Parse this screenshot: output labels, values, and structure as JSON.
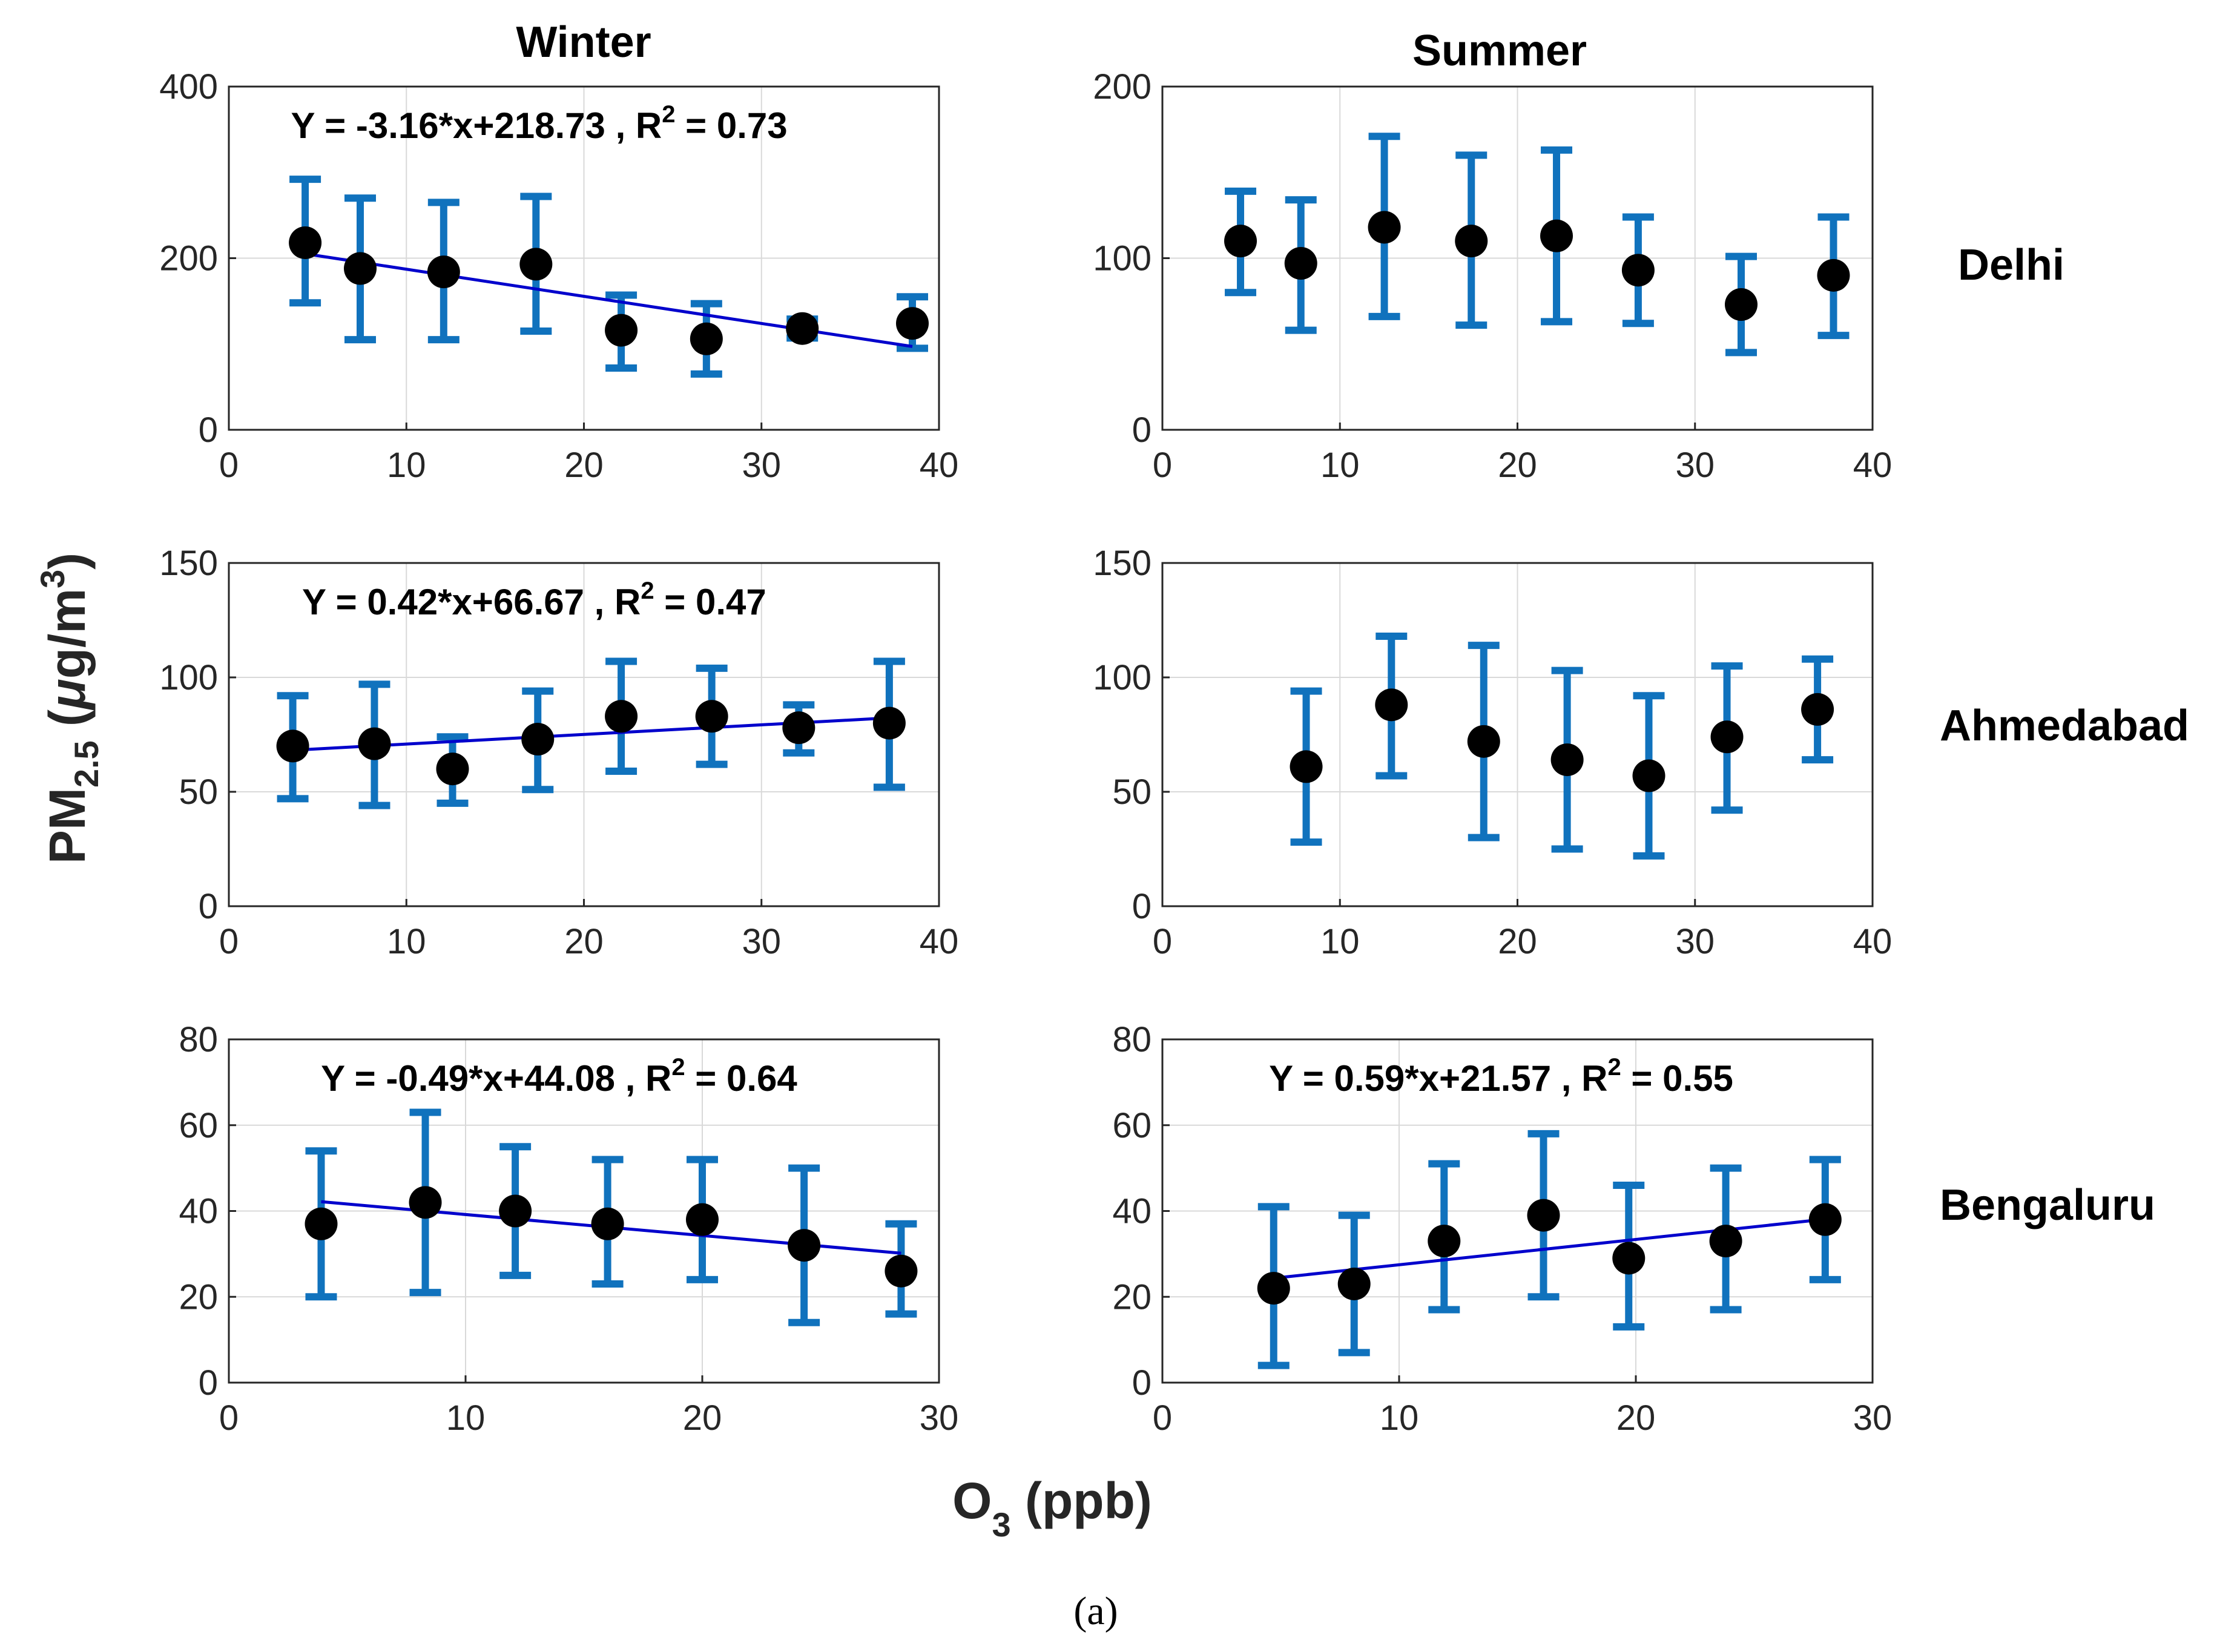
{
  "figure": {
    "columns": [
      "Winter",
      "Summer"
    ],
    "rows": [
      "Delhi",
      "Ahmedabad",
      "Bengaluru"
    ],
    "ylabel": {
      "main": "PM",
      "sub": "2.5",
      "unit_prefix": " (",
      "mu": "μ",
      "unit": "g/m",
      "exp": "3",
      "unit_end": ")"
    },
    "xlabel": {
      "main": "O",
      "sub": "3",
      "unit": " (ppb)"
    },
    "caption": "(a)"
  },
  "colors": {
    "errorbar": "#1072BD",
    "marker": "#000000",
    "fit": "#0000CC",
    "grid": "#D9D9D9",
    "axis": "#262626"
  },
  "chart_data": [
    {
      "id": "winter-delhi",
      "type": "scatter",
      "season": "Winter",
      "city": "Delhi",
      "xlim": [
        0,
        40
      ],
      "ylim": [
        0,
        400
      ],
      "xticks": [
        0,
        10,
        20,
        30,
        40
      ],
      "yticks": [
        0,
        200,
        400
      ],
      "points": [
        {
          "x": 4.3,
          "y": 218,
          "lo": 148,
          "hi": 292
        },
        {
          "x": 7.4,
          "y": 188,
          "lo": 105,
          "hi": 270
        },
        {
          "x": 12.1,
          "y": 184,
          "lo": 105,
          "hi": 265
        },
        {
          "x": 17.3,
          "y": 193,
          "lo": 115,
          "hi": 272
        },
        {
          "x": 22.1,
          "y": 116,
          "lo": 72,
          "hi": 157
        },
        {
          "x": 26.9,
          "y": 106,
          "lo": 65,
          "hi": 147
        },
        {
          "x": 32.3,
          "y": 118,
          "lo": 107,
          "hi": 129
        },
        {
          "x": 38.5,
          "y": 124,
          "lo": 95,
          "hi": 155
        }
      ],
      "fit": {
        "slope": -3.16,
        "intercept": 218.73,
        "x_range": [
          4.3,
          38.5
        ],
        "equation": "Y = -3.16*x+218.73 , R",
        "r2_label": " = 0.73",
        "r2_exp": "2"
      }
    },
    {
      "id": "summer-delhi",
      "type": "scatter",
      "season": "Summer",
      "city": "Delhi",
      "xlim": [
        0,
        40
      ],
      "ylim": [
        0,
        200
      ],
      "xticks": [
        0,
        10,
        20,
        30,
        40
      ],
      "yticks": [
        0,
        100,
        200
      ],
      "points": [
        {
          "x": 4.4,
          "y": 110,
          "lo": 80,
          "hi": 139
        },
        {
          "x": 7.8,
          "y": 97,
          "lo": 58,
          "hi": 134
        },
        {
          "x": 12.5,
          "y": 118,
          "lo": 66,
          "hi": 171
        },
        {
          "x": 17.4,
          "y": 110,
          "lo": 61,
          "hi": 160
        },
        {
          "x": 22.2,
          "y": 113,
          "lo": 63,
          "hi": 163
        },
        {
          "x": 26.8,
          "y": 93,
          "lo": 62,
          "hi": 124
        },
        {
          "x": 32.6,
          "y": 73,
          "lo": 45,
          "hi": 101
        },
        {
          "x": 37.8,
          "y": 90,
          "lo": 55,
          "hi": 124
        }
      ]
    },
    {
      "id": "winter-ahmedabad",
      "type": "scatter",
      "season": "Winter",
      "city": "Ahmedabad",
      "xlim": [
        0,
        40
      ],
      "ylim": [
        0,
        150
      ],
      "xticks": [
        0,
        10,
        20,
        30,
        40
      ],
      "yticks": [
        0,
        50,
        100,
        150
      ],
      "points": [
        {
          "x": 3.6,
          "y": 70,
          "lo": 47,
          "hi": 92
        },
        {
          "x": 8.2,
          "y": 71,
          "lo": 44,
          "hi": 97
        },
        {
          "x": 12.6,
          "y": 60,
          "lo": 45,
          "hi": 74
        },
        {
          "x": 17.4,
          "y": 73,
          "lo": 51,
          "hi": 94
        },
        {
          "x": 22.1,
          "y": 83,
          "lo": 59,
          "hi": 107
        },
        {
          "x": 27.2,
          "y": 83,
          "lo": 62,
          "hi": 104
        },
        {
          "x": 32.1,
          "y": 78,
          "lo": 67,
          "hi": 88
        },
        {
          "x": 37.2,
          "y": 80,
          "lo": 52,
          "hi": 107
        }
      ],
      "fit": {
        "slope": 0.42,
        "intercept": 66.67,
        "x_range": [
          3.6,
          37.2
        ],
        "equation": "Y = 0.42*x+66.67 , R",
        "r2_label": " = 0.47",
        "r2_exp": "2"
      }
    },
    {
      "id": "summer-ahmedabad",
      "type": "scatter",
      "season": "Summer",
      "city": "Ahmedabad",
      "xlim": [
        0,
        40
      ],
      "ylim": [
        0,
        150
      ],
      "xticks": [
        0,
        10,
        20,
        30,
        40
      ],
      "yticks": [
        0,
        50,
        100,
        150
      ],
      "points": [
        {
          "x": 8.1,
          "y": 61,
          "lo": 28,
          "hi": 94
        },
        {
          "x": 12.9,
          "y": 88,
          "lo": 57,
          "hi": 118
        },
        {
          "x": 18.1,
          "y": 72,
          "lo": 30,
          "hi": 114
        },
        {
          "x": 22.8,
          "y": 64,
          "lo": 25,
          "hi": 103
        },
        {
          "x": 27.4,
          "y": 57,
          "lo": 22,
          "hi": 92
        },
        {
          "x": 31.8,
          "y": 74,
          "lo": 42,
          "hi": 105
        },
        {
          "x": 36.9,
          "y": 86,
          "lo": 64,
          "hi": 108
        }
      ]
    },
    {
      "id": "winter-bengaluru",
      "type": "scatter",
      "season": "Winter",
      "city": "Bengaluru",
      "xlim": [
        0,
        30
      ],
      "ylim": [
        0,
        80
      ],
      "xticks": [
        0,
        10,
        20,
        30
      ],
      "yticks": [
        0,
        20,
        40,
        60,
        80
      ],
      "points": [
        {
          "x": 3.9,
          "y": 37,
          "lo": 20,
          "hi": 54
        },
        {
          "x": 8.3,
          "y": 42,
          "lo": 21,
          "hi": 63
        },
        {
          "x": 12.1,
          "y": 40,
          "lo": 25,
          "hi": 55
        },
        {
          "x": 16.0,
          "y": 37,
          "lo": 23,
          "hi": 52
        },
        {
          "x": 20.0,
          "y": 38,
          "lo": 24,
          "hi": 52
        },
        {
          "x": 24.3,
          "y": 32,
          "lo": 14,
          "hi": 50
        },
        {
          "x": 28.4,
          "y": 26,
          "lo": 16,
          "hi": 37
        }
      ],
      "fit": {
        "slope": -0.49,
        "intercept": 44.08,
        "x_range": [
          3.9,
          28.4
        ],
        "equation": "Y = -0.49*x+44.08 , R",
        "r2_label": " = 0.64",
        "r2_exp": "2"
      }
    },
    {
      "id": "summer-bengaluru",
      "type": "scatter",
      "season": "Summer",
      "city": "Bengaluru",
      "xlim": [
        0,
        30
      ],
      "ylim": [
        0,
        80
      ],
      "xticks": [
        0,
        10,
        20,
        30
      ],
      "yticks": [
        0,
        20,
        40,
        60,
        80
      ],
      "points": [
        {
          "x": 4.7,
          "y": 22,
          "lo": 4,
          "hi": 41
        },
        {
          "x": 8.1,
          "y": 23,
          "lo": 7,
          "hi": 39
        },
        {
          "x": 11.9,
          "y": 33,
          "lo": 17,
          "hi": 51
        },
        {
          "x": 16.1,
          "y": 39,
          "lo": 20,
          "hi": 58
        },
        {
          "x": 19.7,
          "y": 29,
          "lo": 13,
          "hi": 46
        },
        {
          "x": 23.8,
          "y": 33,
          "lo": 17,
          "hi": 50
        },
        {
          "x": 28.0,
          "y": 38,
          "lo": 24,
          "hi": 52
        }
      ],
      "fit": {
        "slope": 0.59,
        "intercept": 21.57,
        "x_range": [
          4.7,
          28.0
        ],
        "equation": "Y = 0.59*x+21.57 , R",
        "r2_label": " = 0.55",
        "r2_exp": "2"
      }
    }
  ]
}
